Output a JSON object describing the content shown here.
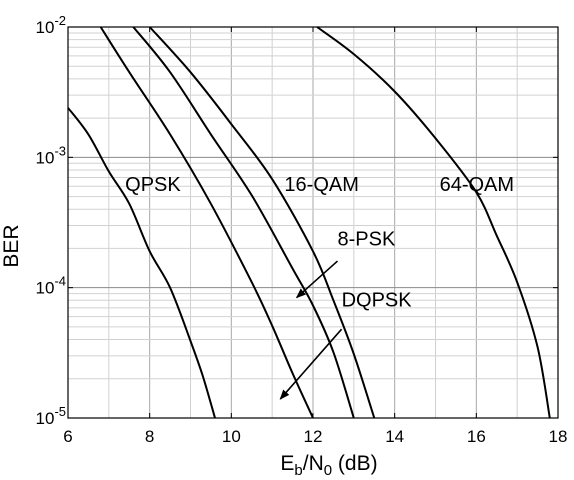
{
  "chart_data": {
    "type": "line",
    "xlabel": {
      "main": "E",
      "sub1": "b",
      "mid": "/N",
      "sub2": "0",
      "tail": " (dB)"
    },
    "ylabel": "BER",
    "xlim": [
      6,
      18
    ],
    "ylim": [
      1e-05,
      0.01
    ],
    "yscale": "log",
    "grid": true,
    "x_ticks": [
      6,
      8,
      10,
      12,
      14,
      16,
      18
    ],
    "y_ticks": [
      {
        "value": 1e-05,
        "base": "10",
        "exp": "-5"
      },
      {
        "value": 0.0001,
        "base": "10",
        "exp": "-4"
      },
      {
        "value": 0.001,
        "base": "10",
        "exp": "-3"
      },
      {
        "value": 0.01,
        "base": "10",
        "exp": "-2"
      }
    ],
    "series": [
      {
        "name": "QPSK",
        "color": "#000000",
        "points": [
          [
            6.0,
            0.0024
          ],
          [
            6.5,
            0.0015
          ],
          [
            7.0,
            0.00078
          ],
          [
            7.5,
            0.00044
          ],
          [
            8.0,
            0.00019
          ],
          [
            8.5,
            0.0001
          ],
          [
            9.0,
            3.9e-05
          ],
          [
            9.3,
            2.1e-05
          ],
          [
            9.6,
            1e-05
          ]
        ]
      },
      {
        "name": "DQPSK",
        "color": "#000000",
        "points": [
          [
            6.8,
            0.01
          ],
          [
            7.5,
            0.0045
          ],
          [
            8.5,
            0.0015
          ],
          [
            9.5,
            0.00044
          ],
          [
            10.5,
            0.00011
          ],
          [
            11.0,
            5.1e-05
          ],
          [
            11.5,
            2.2e-05
          ],
          [
            12.0,
            1e-05
          ]
        ]
      },
      {
        "name": "8-PSK",
        "color": "#000000",
        "points": [
          [
            7.6,
            0.01
          ],
          [
            8.5,
            0.0045
          ],
          [
            9.5,
            0.0015
          ],
          [
            10.5,
            0.00051
          ],
          [
            11.5,
            0.00014
          ],
          [
            12.0,
            7.3e-05
          ],
          [
            12.5,
            3.2e-05
          ],
          [
            13.0,
            1e-05
          ]
        ]
      },
      {
        "name": "16-QAM",
        "color": "#000000",
        "points": [
          [
            8.0,
            0.01
          ],
          [
            9.0,
            0.0045
          ],
          [
            10.0,
            0.0018
          ],
          [
            11.0,
            0.00068
          ],
          [
            12.0,
            0.00019
          ],
          [
            12.5,
            8e-05
          ],
          [
            13.0,
            3.1e-05
          ],
          [
            13.5,
            1e-05
          ]
        ]
      },
      {
        "name": "64-QAM",
        "color": "#000000",
        "points": [
          [
            12.1,
            0.01
          ],
          [
            13.0,
            0.0062
          ],
          [
            14.0,
            0.0032
          ],
          [
            15.0,
            0.0014
          ],
          [
            16.0,
            0.00054
          ],
          [
            16.5,
            0.00025
          ],
          [
            17.0,
            0.00011
          ],
          [
            17.5,
            3.5e-05
          ],
          [
            17.8,
            1e-05
          ]
        ]
      }
    ],
    "labels": [
      {
        "text": "QPSK",
        "x": 7.4,
        "y": 0.00055
      },
      {
        "text": "16-QAM",
        "x": 11.3,
        "y": 0.00055
      },
      {
        "text": "64-QAM",
        "x": 15.1,
        "y": 0.00055
      },
      {
        "text": "8-PSK",
        "x": 12.6,
        "y": 0.00021
      },
      {
        "text": "DQPSK",
        "x": 12.7,
        "y": 7.2e-05
      }
    ],
    "arrows": [
      {
        "from": [
          12.6,
          0.00016
        ],
        "to": [
          11.6,
          8.4e-05
        ]
      },
      {
        "from": [
          12.7,
          4.8e-05
        ],
        "to": [
          11.2,
          1.4e-05
        ]
      }
    ]
  }
}
